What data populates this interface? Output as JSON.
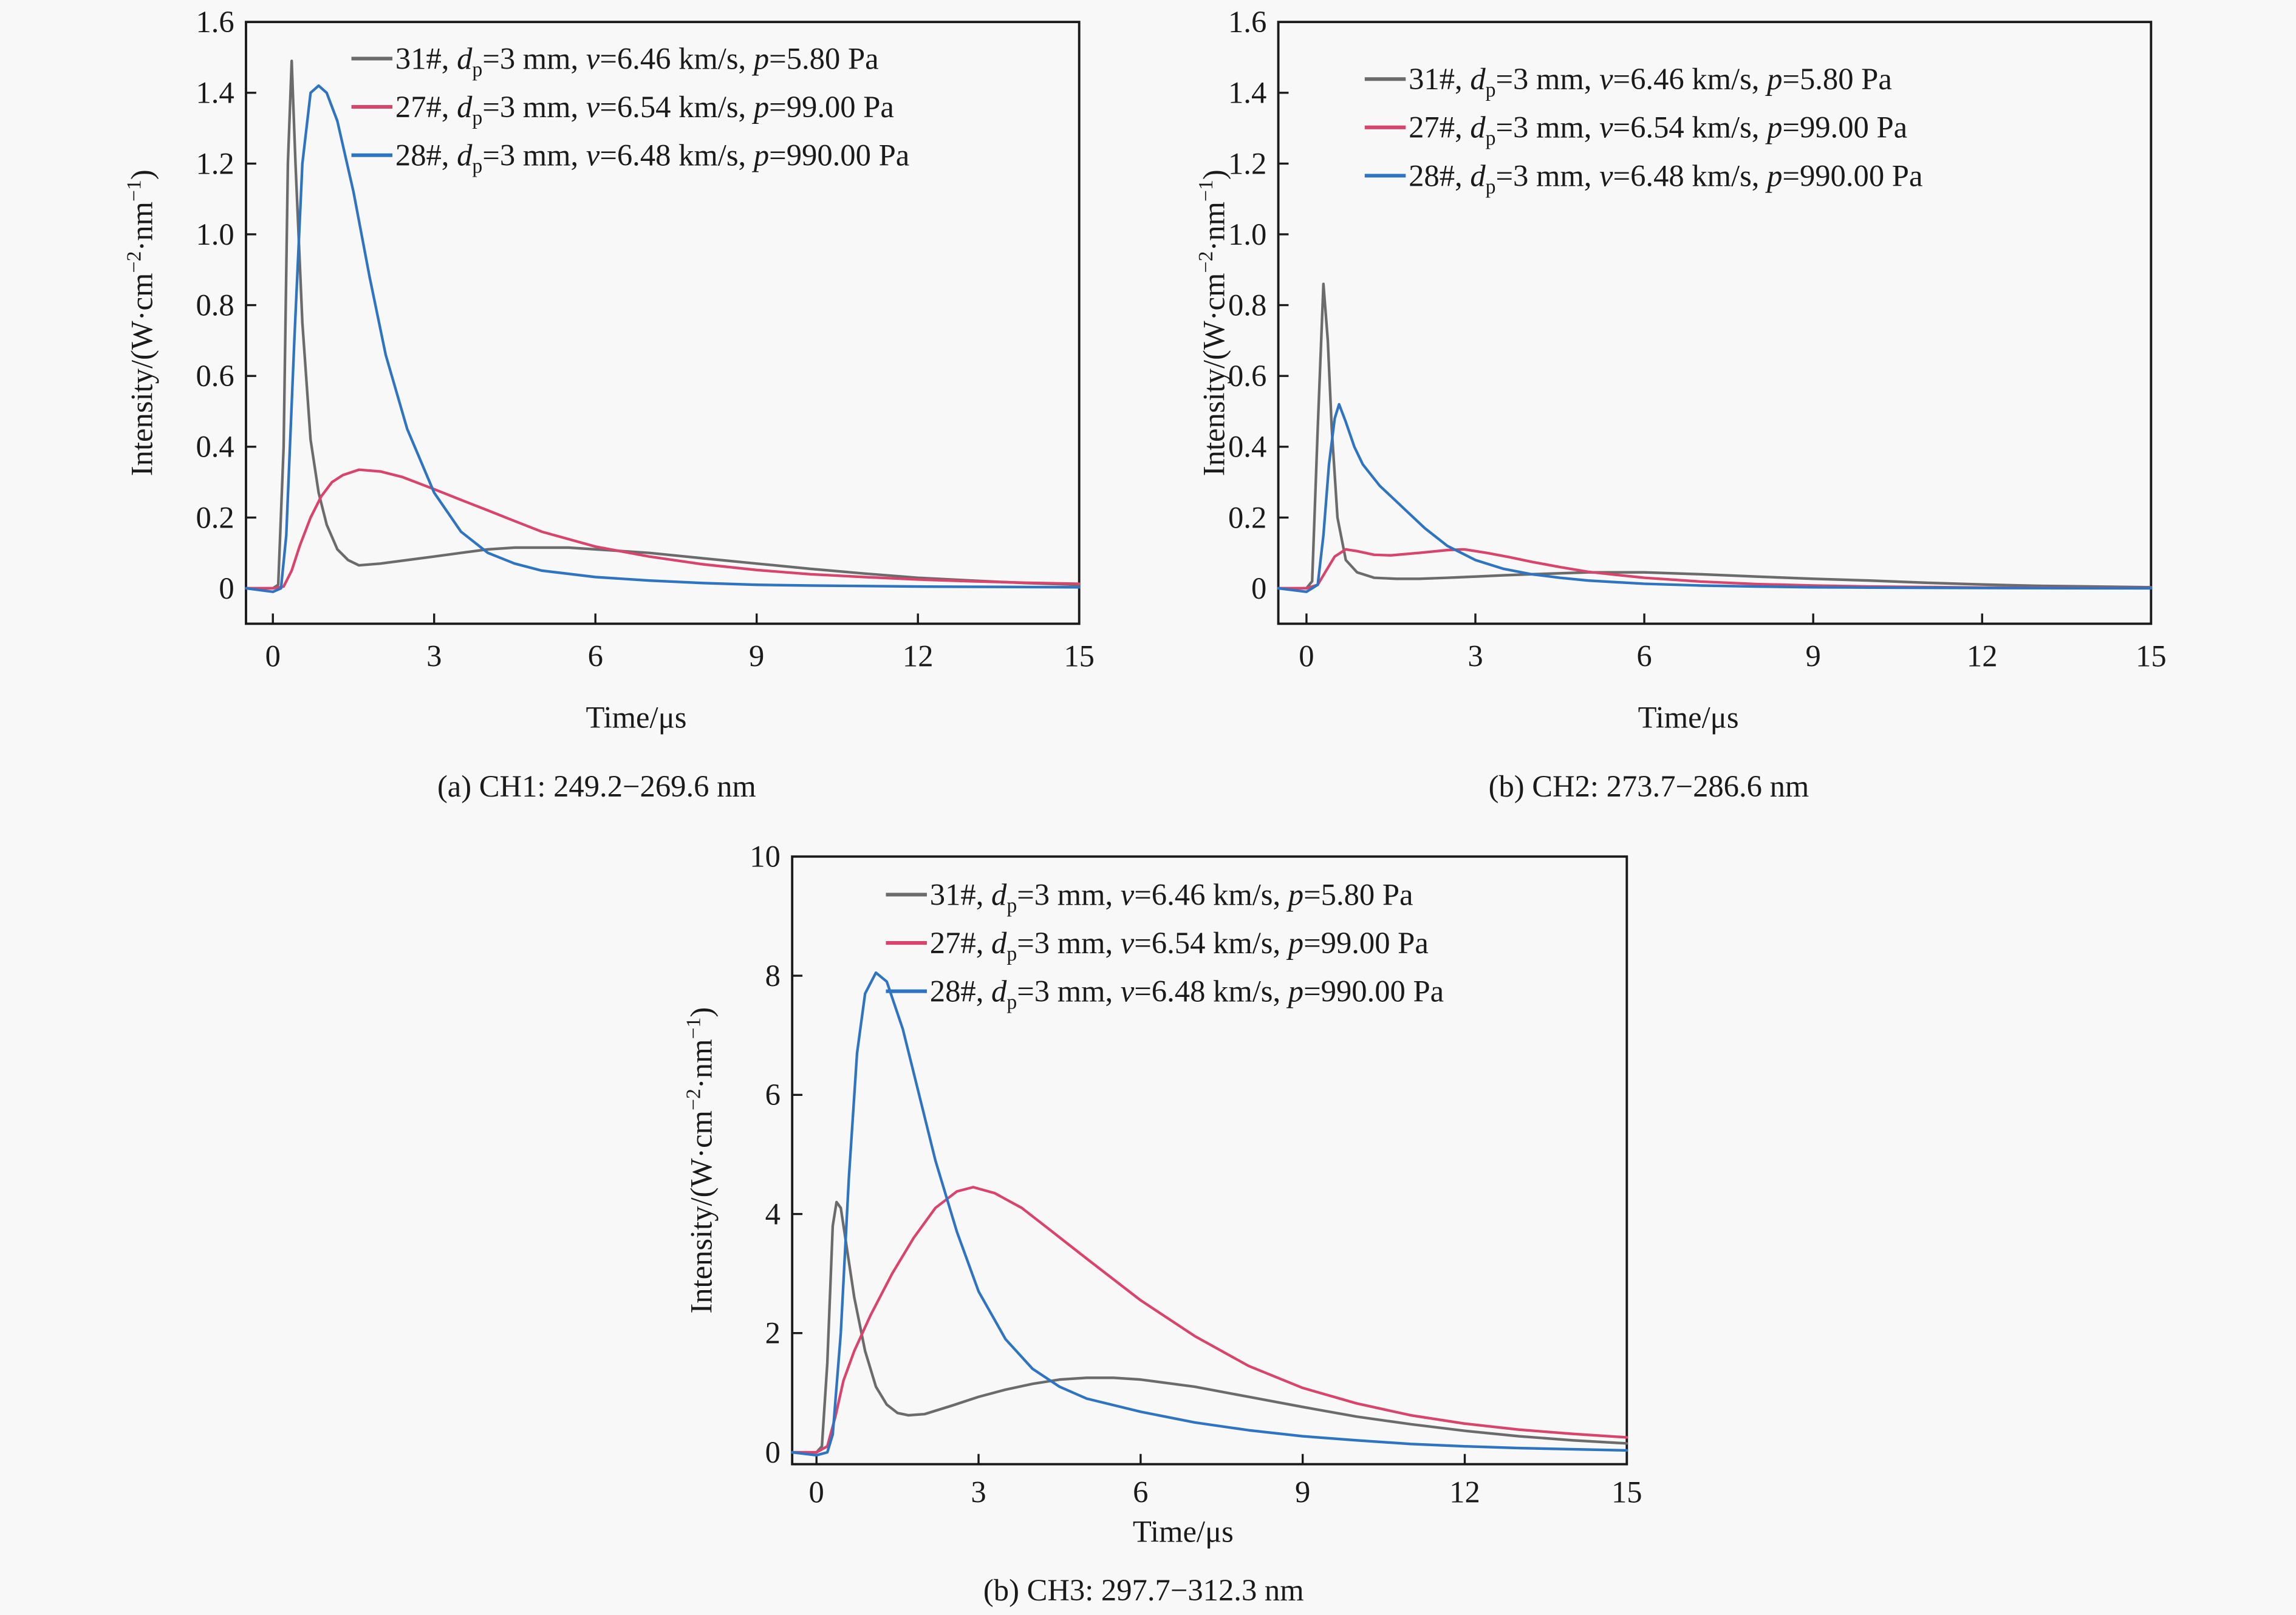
{
  "chart_data": [
    {
      "id": "ch1",
      "type": "line",
      "caption": "(a) CH1: 249.2−269.6 nm",
      "xlabel": "Time/μs",
      "ylabel": "Intensity/(W·cm⁻²·nm⁻¹)",
      "xlim": [
        -0.5,
        15
      ],
      "ylim": [
        -0.1,
        1.6
      ],
      "xticks": [
        0,
        3,
        6,
        9,
        12,
        15
      ],
      "xtick_labels": [
        "0",
        "3",
        "6",
        "9",
        "12",
        "15"
      ],
      "yticks": [
        0,
        0.2,
        0.4,
        0.6,
        0.8,
        1.0,
        1.2,
        1.4,
        1.6
      ],
      "ytick_labels": [
        "0",
        "0.2",
        "0.4",
        "0.6",
        "0.8",
        "1.0",
        "1.2",
        "1.4",
        "1.6"
      ],
      "grid": false,
      "legend_position": "top-right",
      "series": [
        {
          "name": "31#",
          "label_parts": [
            "31#, ",
            "d",
            "p",
            "=3 mm, ",
            "v",
            "=6.46 km/s, ",
            "p",
            "=5.80 Pa"
          ],
          "color": "#6b6b6b",
          "x": [
            -0.5,
            0,
            0.1,
            0.2,
            0.28,
            0.35,
            0.42,
            0.55,
            0.7,
            0.85,
            1.0,
            1.2,
            1.4,
            1.6,
            2.0,
            2.5,
            3.0,
            3.5,
            4.0,
            4.5,
            5.0,
            5.5,
            6.0,
            7.0,
            8.0,
            9.0,
            10.0,
            11.0,
            12.0,
            13.0,
            14.0,
            15.0
          ],
          "y": [
            0,
            0,
            0.01,
            0.4,
            1.2,
            1.49,
            1.2,
            0.75,
            0.42,
            0.27,
            0.18,
            0.11,
            0.08,
            0.065,
            0.07,
            0.08,
            0.09,
            0.1,
            0.11,
            0.115,
            0.115,
            0.115,
            0.11,
            0.1,
            0.085,
            0.07,
            0.055,
            0.042,
            0.03,
            0.022,
            0.015,
            0.01
          ]
        },
        {
          "name": "27#",
          "label_parts": [
            "27#, ",
            "d",
            "p",
            "=3 mm, ",
            "v",
            "=6.54 km/s, ",
            "p",
            "=99.00 Pa"
          ],
          "color": "#d9446c",
          "x": [
            -0.5,
            0,
            0.2,
            0.35,
            0.5,
            0.7,
            0.9,
            1.1,
            1.3,
            1.6,
            2.0,
            2.4,
            3.0,
            3.5,
            4.0,
            4.5,
            5.0,
            6.0,
            7.0,
            8.0,
            9.0,
            10.0,
            11.0,
            12.0,
            13.0,
            14.0,
            15.0
          ],
          "y": [
            0,
            0,
            0.005,
            0.05,
            0.12,
            0.2,
            0.26,
            0.3,
            0.32,
            0.335,
            0.33,
            0.315,
            0.28,
            0.25,
            0.22,
            0.19,
            0.16,
            0.118,
            0.09,
            0.068,
            0.052,
            0.04,
            0.032,
            0.025,
            0.02,
            0.016,
            0.013
          ]
        },
        {
          "name": "28#",
          "label_parts": [
            "28#, ",
            "d",
            "p",
            "=3 mm, ",
            "v",
            "=6.48 km/s, ",
            "p",
            "=990.00 Pa"
          ],
          "color": "#2f74c0",
          "x": [
            -0.5,
            0,
            0.15,
            0.25,
            0.4,
            0.55,
            0.7,
            0.85,
            1.0,
            1.2,
            1.5,
            1.8,
            2.1,
            2.5,
            3.0,
            3.5,
            4.0,
            4.5,
            5.0,
            6.0,
            7.0,
            8.0,
            9.0,
            10.0,
            12.0,
            15.0
          ],
          "y": [
            0,
            -0.01,
            0.0,
            0.15,
            0.7,
            1.2,
            1.4,
            1.42,
            1.4,
            1.32,
            1.12,
            0.88,
            0.66,
            0.45,
            0.27,
            0.16,
            0.1,
            0.07,
            0.05,
            0.032,
            0.022,
            0.015,
            0.01,
            0.008,
            0.005,
            0.003
          ]
        }
      ]
    },
    {
      "id": "ch2",
      "type": "line",
      "caption": "(b) CH2: 273.7−286.6 nm",
      "xlabel": "Time/μs",
      "ylabel": "Intensity/(W·cm⁻²·nm⁻¹)",
      "xlim": [
        -0.5,
        15
      ],
      "ylim": [
        -0.1,
        1.6
      ],
      "xticks": [
        0,
        3,
        6,
        9,
        12,
        15
      ],
      "xtick_labels": [
        "0",
        "3",
        "6",
        "9",
        "12",
        "15"
      ],
      "yticks": [
        0,
        0.2,
        0.4,
        0.6,
        0.8,
        1.0,
        1.2,
        1.4,
        1.6
      ],
      "ytick_labels": [
        "0",
        "0.2",
        "0.4",
        "0.6",
        "0.8",
        "1.0",
        "1.2",
        "1.4",
        "1.6"
      ],
      "grid": false,
      "legend_position": "top-right",
      "series": [
        {
          "name": "31#",
          "label_parts": [
            "31#, ",
            "d",
            "p",
            "=3 mm, ",
            "v",
            "=6.46 km/s, ",
            "p",
            "=5.80 Pa"
          ],
          "color": "#6b6b6b",
          "x": [
            -0.5,
            0,
            0.1,
            0.2,
            0.3,
            0.38,
            0.45,
            0.55,
            0.7,
            0.9,
            1.2,
            1.6,
            2.0,
            2.5,
            3.0,
            3.5,
            4.0,
            5.0,
            6.0,
            7.0,
            8.0,
            9.0,
            10.0,
            11.0,
            12.0,
            13.0,
            15.0
          ],
          "y": [
            0,
            0,
            0.02,
            0.45,
            0.86,
            0.7,
            0.45,
            0.2,
            0.08,
            0.045,
            0.03,
            0.027,
            0.027,
            0.03,
            0.033,
            0.037,
            0.04,
            0.045,
            0.045,
            0.04,
            0.033,
            0.027,
            0.022,
            0.016,
            0.011,
            0.007,
            0.003
          ]
        },
        {
          "name": "27#",
          "label_parts": [
            "27#, ",
            "d",
            "p",
            "=3 mm, ",
            "v",
            "=6.54 km/s, ",
            "p",
            "=99.00 Pa"
          ],
          "color": "#d9446c",
          "x": [
            -0.5,
            0,
            0.2,
            0.35,
            0.5,
            0.7,
            0.9,
            1.2,
            1.5,
            2.0,
            2.5,
            2.8,
            3.2,
            3.6,
            4.0,
            4.5,
            5.0,
            5.5,
            6.0,
            7.0,
            8.0,
            9.0,
            10.0,
            12.0,
            15.0
          ],
          "y": [
            0,
            0,
            0.01,
            0.05,
            0.09,
            0.11,
            0.105,
            0.095,
            0.093,
            0.1,
            0.108,
            0.11,
            0.1,
            0.088,
            0.075,
            0.06,
            0.047,
            0.038,
            0.03,
            0.019,
            0.012,
            0.008,
            0.005,
            0.002,
            0.001
          ]
        },
        {
          "name": "28#",
          "label_parts": [
            "28#, ",
            "d",
            "p",
            "=3 mm, ",
            "v",
            "=6.48 km/s, ",
            "p",
            "=990.00 Pa"
          ],
          "color": "#2f74c0",
          "x": [
            -0.5,
            0,
            0.2,
            0.3,
            0.4,
            0.5,
            0.58,
            0.7,
            0.85,
            1.0,
            1.3,
            1.7,
            2.1,
            2.5,
            3.0,
            3.5,
            4.0,
            4.5,
            5.0,
            6.0,
            7.0,
            8.0,
            9.0,
            10.0,
            12.0,
            15.0
          ],
          "y": [
            0,
            -0.01,
            0.01,
            0.15,
            0.35,
            0.48,
            0.52,
            0.47,
            0.4,
            0.35,
            0.29,
            0.23,
            0.17,
            0.12,
            0.08,
            0.055,
            0.04,
            0.03,
            0.022,
            0.013,
            0.008,
            0.005,
            0.003,
            0.002,
            0.001,
            0.0
          ]
        }
      ]
    },
    {
      "id": "ch3",
      "type": "line",
      "caption": "(b) CH3: 297.7−312.3 nm",
      "xlabel": "Time/μs",
      "ylabel": "Intensity/(W·cm⁻²·nm⁻¹)",
      "xlim": [
        -0.45,
        15
      ],
      "ylim": [
        -0.2,
        10
      ],
      "xticks": [
        0,
        3,
        6,
        9,
        12,
        15
      ],
      "xtick_labels": [
        "0",
        "3",
        "6",
        "9",
        "12",
        "15"
      ],
      "yticks": [
        0,
        2,
        4,
        6,
        8,
        10
      ],
      "ytick_labels": [
        "0",
        "2",
        "4",
        "6",
        "8",
        "10"
      ],
      "grid": false,
      "legend_position": "top-right",
      "series": [
        {
          "name": "31#",
          "label_parts": [
            "31#, ",
            "d",
            "p",
            "=3 mm, ",
            "v",
            "=6.46 km/s, ",
            "p",
            "=5.80 Pa"
          ],
          "color": "#6b6b6b",
          "x": [
            -0.45,
            0,
            0.1,
            0.2,
            0.3,
            0.37,
            0.45,
            0.55,
            0.7,
            0.9,
            1.1,
            1.3,
            1.5,
            1.7,
            2.0,
            2.5,
            3.0,
            3.5,
            4.0,
            4.5,
            5.0,
            5.5,
            6.0,
            7.0,
            8.0,
            9.0,
            10.0,
            11.0,
            12.0,
            13.0,
            14.0,
            15.0
          ],
          "y": [
            0,
            0,
            0.1,
            1.5,
            3.8,
            4.2,
            4.1,
            3.5,
            2.6,
            1.7,
            1.1,
            0.8,
            0.66,
            0.62,
            0.64,
            0.78,
            0.93,
            1.05,
            1.15,
            1.22,
            1.25,
            1.25,
            1.22,
            1.1,
            0.93,
            0.76,
            0.6,
            0.47,
            0.36,
            0.27,
            0.2,
            0.15
          ]
        },
        {
          "name": "27#",
          "label_parts": [
            "27#, ",
            "d",
            "p",
            "=3 mm, ",
            "v",
            "=6.54 km/s, ",
            "p",
            "=99.00 Pa"
          ],
          "color": "#d9446c",
          "x": [
            -0.45,
            0,
            0.2,
            0.35,
            0.5,
            0.7,
            1.0,
            1.4,
            1.8,
            2.2,
            2.6,
            2.9,
            3.3,
            3.8,
            4.3,
            5.0,
            6.0,
            7.0,
            8.0,
            9.0,
            10.0,
            11.0,
            12.0,
            13.0,
            14.0,
            15.0
          ],
          "y": [
            0,
            0,
            0.1,
            0.6,
            1.2,
            1.7,
            2.3,
            3.0,
            3.6,
            4.1,
            4.38,
            4.45,
            4.35,
            4.1,
            3.75,
            3.25,
            2.55,
            1.95,
            1.45,
            1.08,
            0.82,
            0.62,
            0.48,
            0.38,
            0.31,
            0.25
          ]
        },
        {
          "name": "28#",
          "label_parts": [
            "28#, ",
            "d",
            "p",
            "=3 mm, ",
            "v",
            "=6.48 km/s, ",
            "p",
            "=990.00 Pa"
          ],
          "color": "#2f74c0",
          "x": [
            -0.45,
            0,
            0.2,
            0.3,
            0.45,
            0.6,
            0.75,
            0.9,
            1.1,
            1.3,
            1.6,
            1.9,
            2.2,
            2.6,
            3.0,
            3.5,
            4.0,
            4.5,
            5.0,
            6.0,
            7.0,
            8.0,
            9.0,
            10.0,
            11.0,
            12.0,
            13.0,
            15.0
          ],
          "y": [
            0,
            -0.05,
            0,
            0.3,
            2.0,
            4.6,
            6.7,
            7.7,
            8.05,
            7.9,
            7.1,
            6.0,
            4.9,
            3.7,
            2.7,
            1.9,
            1.4,
            1.1,
            0.9,
            0.68,
            0.5,
            0.37,
            0.27,
            0.2,
            0.14,
            0.1,
            0.07,
            0.03
          ]
        }
      ]
    }
  ]
}
